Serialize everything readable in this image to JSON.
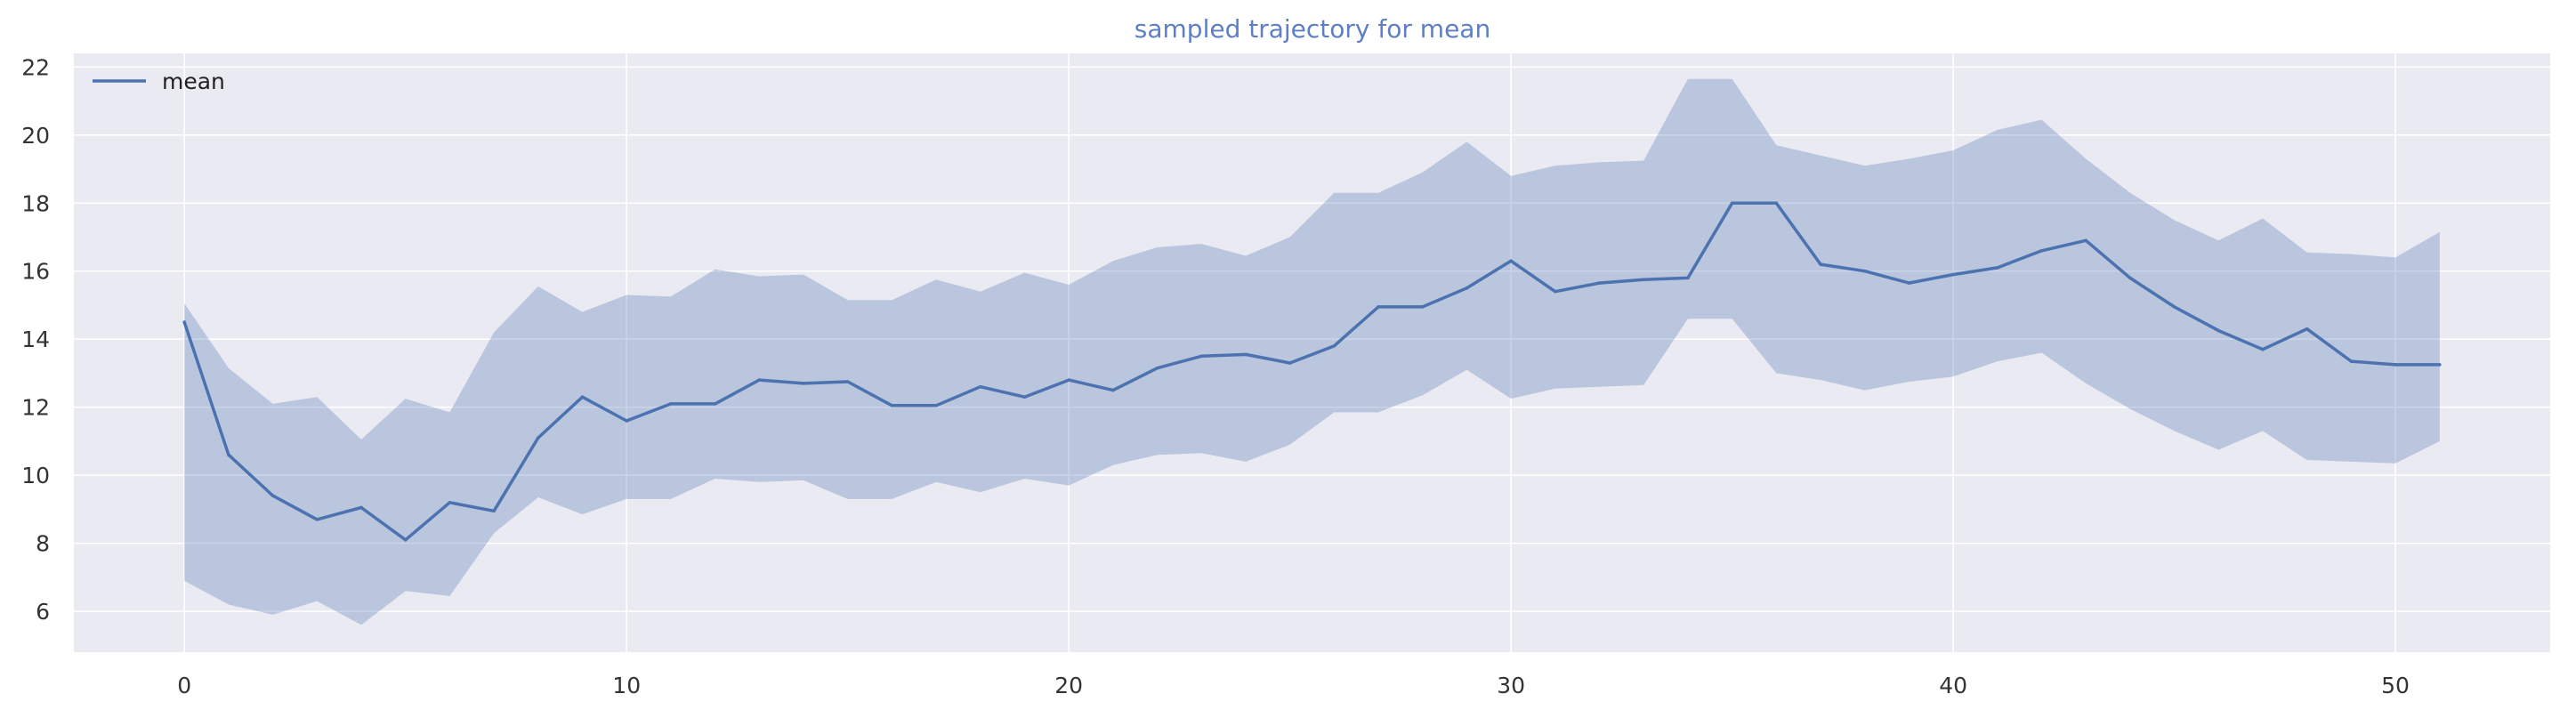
{
  "chart_data": {
    "type": "line",
    "title": "sampled trajectory for mean",
    "xlabel": "",
    "ylabel": "",
    "xlim": [
      -2.5,
      53.5
    ],
    "ylim": [
      4.8,
      22.4
    ],
    "xticks": [
      0,
      10,
      20,
      30,
      40,
      50
    ],
    "yticks": [
      6,
      8,
      10,
      12,
      14,
      16,
      18,
      20,
      22
    ],
    "grid": true,
    "legend_position": "top-left",
    "series": [
      {
        "name": "mean",
        "x": [
          0,
          1,
          2,
          3,
          4,
          5,
          6,
          7,
          8,
          9,
          10,
          11,
          12,
          13,
          14,
          15,
          16,
          17,
          18,
          19,
          20,
          21,
          22,
          23,
          24,
          25,
          26,
          27,
          28,
          29,
          30,
          31,
          32,
          33,
          34,
          35,
          36,
          37,
          38,
          39,
          40,
          41,
          42,
          43,
          44,
          45,
          46,
          47,
          48,
          49,
          50,
          51
        ],
        "values": [
          14.5,
          10.6,
          9.4,
          8.7,
          9.05,
          8.1,
          9.2,
          8.95,
          11.1,
          12.3,
          11.6,
          12.1,
          12.1,
          12.8,
          12.7,
          12.75,
          12.05,
          12.05,
          12.6,
          12.3,
          12.8,
          12.5,
          13.15,
          13.5,
          13.55,
          13.3,
          13.8,
          14.95,
          14.95,
          15.5,
          16.3,
          15.4,
          15.65,
          15.75,
          15.8,
          18.0,
          18.0,
          16.2,
          16.0,
          15.65,
          15.9,
          16.1,
          16.6,
          16.9,
          15.8,
          14.95,
          14.25,
          13.7,
          14.3,
          13.35,
          13.25,
          13.25
        ],
        "lower": [
          6.9,
          6.2,
          5.9,
          6.3,
          5.6,
          6.6,
          6.45,
          8.3,
          9.35,
          8.85,
          9.3,
          9.3,
          9.9,
          9.8,
          9.85,
          9.3,
          9.3,
          9.8,
          9.5,
          9.9,
          9.7,
          10.3,
          10.6,
          10.65,
          10.4,
          10.9,
          11.85,
          11.85,
          12.35,
          13.1,
          12.25,
          12.55,
          12.6,
          12.65,
          14.6,
          14.6,
          13.0,
          12.8,
          12.5,
          12.75,
          12.9,
          13.35,
          13.6,
          12.7,
          11.95,
          11.3,
          10.75,
          11.3,
          10.45,
          10.4,
          10.35,
          11.0
        ],
        "upper": [
          15.05,
          13.15,
          12.1,
          12.3,
          11.05,
          12.25,
          11.85,
          14.2,
          15.55,
          14.8,
          15.3,
          15.25,
          16.05,
          15.85,
          15.9,
          15.15,
          15.15,
          15.75,
          15.4,
          15.95,
          15.6,
          16.3,
          16.7,
          16.8,
          16.45,
          17.0,
          18.3,
          18.3,
          18.9,
          19.8,
          18.8,
          19.1,
          19.2,
          19.25,
          21.65,
          21.65,
          19.7,
          19.4,
          19.1,
          19.3,
          19.55,
          20.15,
          20.45,
          19.3,
          18.3,
          17.5,
          16.9,
          17.55,
          16.55,
          16.5,
          16.4,
          17.15
        ],
        "color": "#4c72b0"
      }
    ]
  },
  "colors": {
    "plot_background": "#eaeaf2",
    "grid": "#ffffff",
    "line": "#4c72b0",
    "band": "#4c72b0",
    "title": "#5f7fc4"
  }
}
